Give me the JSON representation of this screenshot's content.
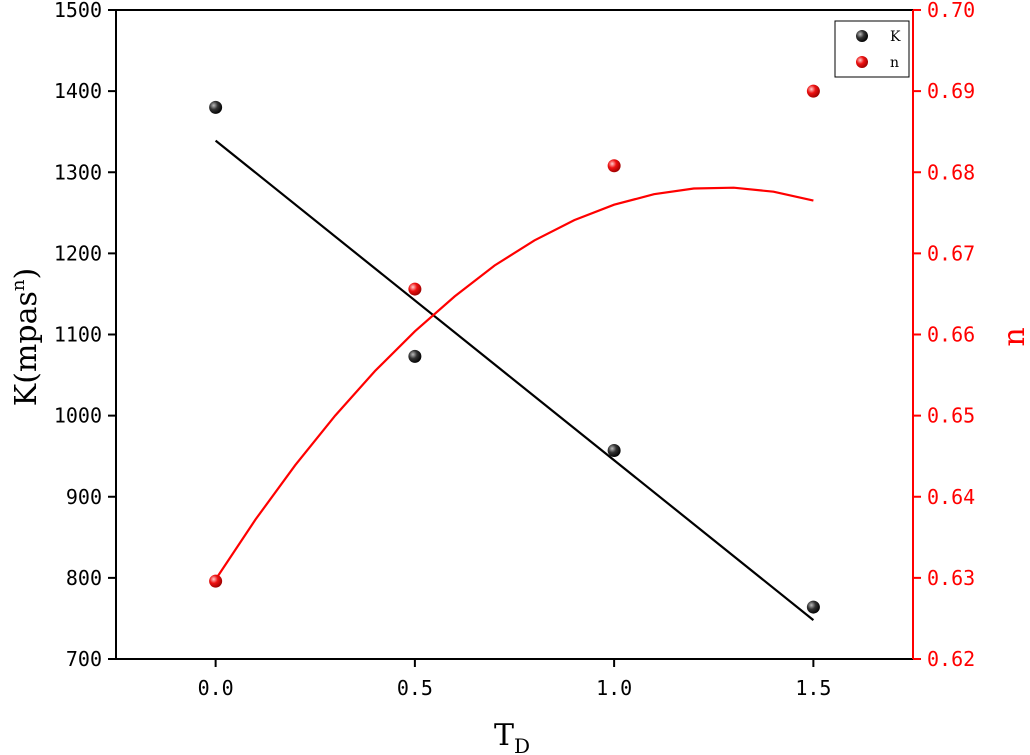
{
  "chart_data": {
    "type": "scatter",
    "title": "",
    "xlabel_main": "T",
    "xlabel_sub": "D",
    "ylabel_left_main": "K(mpas",
    "ylabel_left_sup": "n",
    "ylabel_left_end": ")",
    "ylabel_right": "n",
    "xlim": [
      -0.25,
      1.75
    ],
    "ylim_left": [
      700,
      1500
    ],
    "ylim_right": [
      0.62,
      0.7
    ],
    "x_ticks": [
      0.0,
      0.5,
      1.0,
      1.5
    ],
    "x_tick_labels": [
      "0.0",
      "0.5",
      "1.0",
      "1.5"
    ],
    "y_left_ticks": [
      700,
      800,
      900,
      1000,
      1100,
      1200,
      1300,
      1400,
      1500
    ],
    "y_left_tick_labels": [
      "700",
      "800",
      "900",
      "1000",
      "1100",
      "1200",
      "1300",
      "1400",
      "1500"
    ],
    "y_right_ticks": [
      0.62,
      0.63,
      0.64,
      0.65,
      0.66,
      0.67,
      0.68,
      0.69,
      0.7
    ],
    "y_right_tick_labels": [
      "0.62",
      "0.63",
      "0.64",
      "0.65",
      "0.66",
      "0.67",
      "0.68",
      "0.69",
      "0.70"
    ],
    "grid": false,
    "legend_position": "top-right",
    "series": [
      {
        "name": "K",
        "axis": "left",
        "color": "#000000",
        "x": [
          0.0,
          0.5,
          1.0,
          1.5
        ],
        "y": [
          1380,
          1073,
          957,
          764
        ],
        "fit": {
          "kind": "linear",
          "x": [
            0.0,
            1.5
          ],
          "y": [
            1339,
            748
          ]
        }
      },
      {
        "name": "n",
        "axis": "right",
        "color": "#ff0000",
        "x": [
          0.0,
          0.5,
          1.0,
          1.5
        ],
        "y": [
          0.6296,
          0.6656,
          0.6808,
          0.69
        ],
        "fit": {
          "kind": "quadratic",
          "x": [
            0.0,
            0.1,
            0.2,
            0.3,
            0.4,
            0.5,
            0.6,
            0.7,
            0.8,
            0.9,
            1.0,
            1.1,
            1.2,
            1.3,
            1.4,
            1.5
          ],
          "y": [
            0.6298,
            0.6372,
            0.6439,
            0.65,
            0.6555,
            0.6604,
            0.6647,
            0.6685,
            0.6716,
            0.6741,
            0.676,
            0.6773,
            0.678,
            0.6781,
            0.6776,
            0.6765
          ]
        }
      }
    ]
  },
  "colors": {
    "axis_left": "#000000",
    "axis_right": "#ff0000"
  }
}
